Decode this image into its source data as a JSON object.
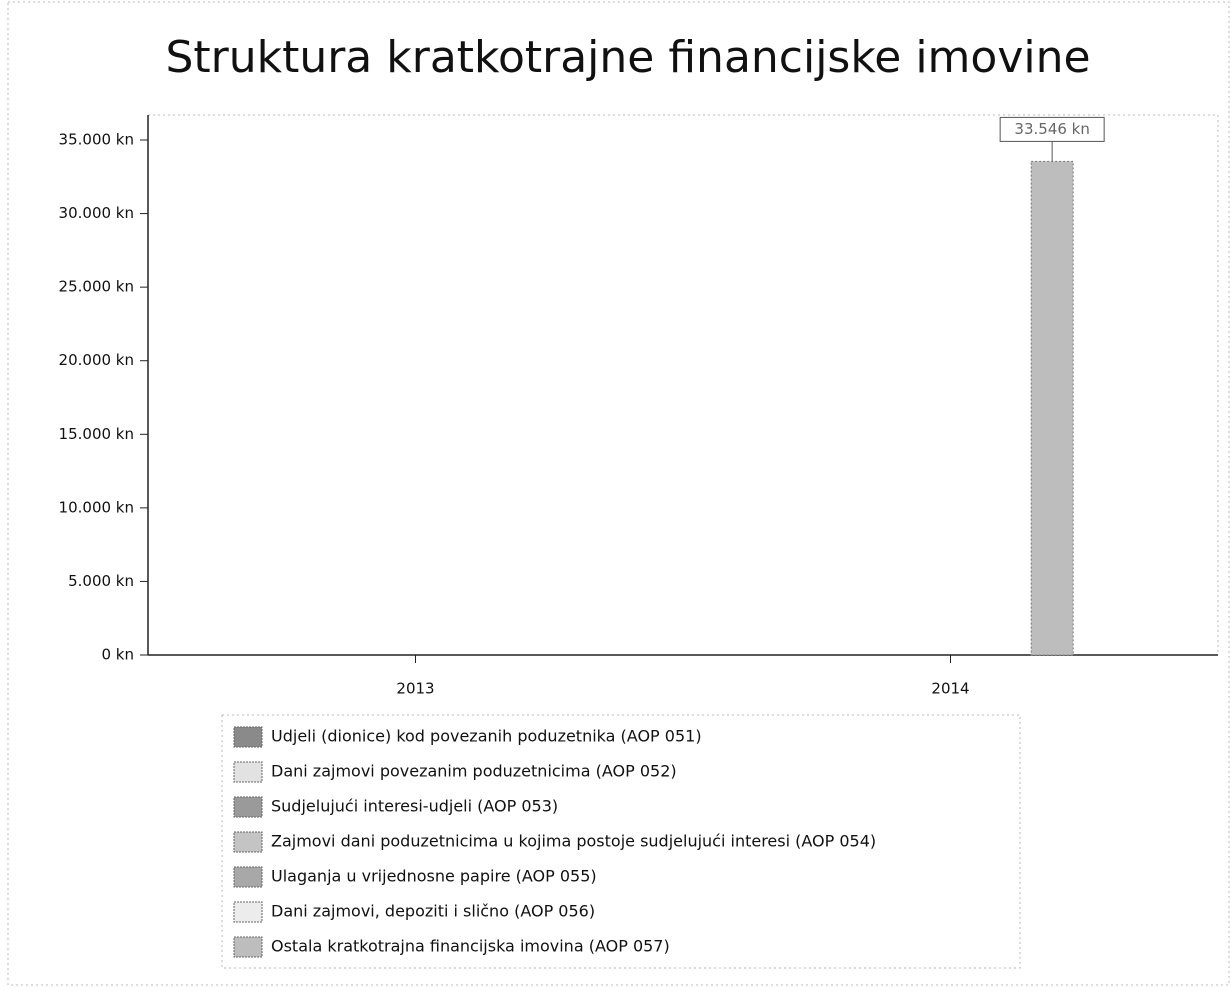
{
  "chart_data": {
    "type": "bar",
    "stacked": true,
    "title": "Struktura kratkotrajne financijske imovine",
    "x": [
      2014.19
    ],
    "xlim": [
      2012.5,
      2014.5
    ],
    "xticks": [
      2013,
      2014
    ],
    "ylim": [
      0,
      36700
    ],
    "yticks": [
      {
        "value": 0,
        "label": "0 kn"
      },
      {
        "value": 5000,
        "label": "5.000 kn"
      },
      {
        "value": 10000,
        "label": "10.000 kn"
      },
      {
        "value": 15000,
        "label": "15.000 kn"
      },
      {
        "value": 20000,
        "label": "20.000 kn"
      },
      {
        "value": 25000,
        "label": "25.000 kn"
      },
      {
        "value": 30000,
        "label": "30.000 kn"
      },
      {
        "value": 35000,
        "label": "35.000 kn"
      }
    ],
    "legend_position": "bottom",
    "series": [
      {
        "name": "Udjeli (dionice) kod povezanih poduzetnika (AOP 051)",
        "color": "#8a8a8a",
        "values": [
          null
        ]
      },
      {
        "name": "Dani zajmovi povezanim poduzetnicima (AOP 052)",
        "color": "#e2e2e2",
        "values": [
          null
        ]
      },
      {
        "name": "Sudjelujući interesi-udjeli (AOP 053)",
        "color": "#9a9a9a",
        "values": [
          null
        ]
      },
      {
        "name": "Zajmovi dani poduzetnicima u kojima postoje sudjelujući interesi (AOP 054)",
        "color": "#c4c4c4",
        "values": [
          null
        ]
      },
      {
        "name": "Ulaganja u vrijednosne papire (AOP 055)",
        "color": "#a8a8a8",
        "values": [
          null
        ]
      },
      {
        "name": "Dani zajmovi, depoziti i slično (AOP 056)",
        "color": "#ececec",
        "values": [
          null
        ]
      },
      {
        "name": "Ostala kratkotrajna financijska imovina (AOP 057)",
        "color": "#bdbdbd",
        "values": [
          33546
        ],
        "value_labels": [
          "33.546 kn"
        ]
      }
    ]
  }
}
